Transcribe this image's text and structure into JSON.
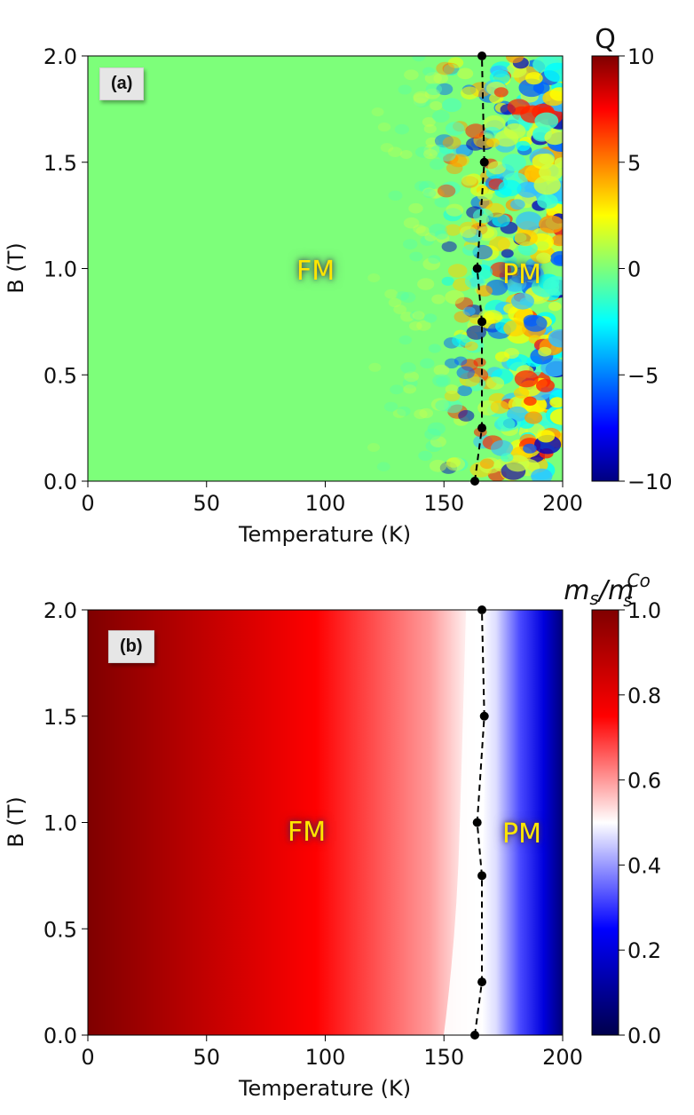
{
  "chart_data": [
    {
      "type": "heatmap",
      "panel_label": "(a)",
      "colorbar_label": "Q",
      "colormap": "jet",
      "xlabel": "Temperature (K)",
      "ylabel": "B (T)",
      "xlim": [
        0,
        200
      ],
      "ylim": [
        0.0,
        2.0
      ],
      "clim": [
        -10,
        10
      ],
      "xticks": [
        "0",
        "50",
        "100",
        "150",
        "200"
      ],
      "yticks": [
        "0.0",
        "0.5",
        "1.0",
        "1.5",
        "2.0"
      ],
      "cticks": [
        "−10",
        "−5",
        "0",
        "5",
        "10"
      ],
      "cticks_values": [
        -10,
        -5,
        0,
        5,
        10
      ],
      "regions": [
        "FM",
        "PM"
      ],
      "transition_line": {
        "T": [
          163,
          166,
          164,
          166,
          167,
          166
        ],
        "B": [
          0.0,
          0.25,
          1.0,
          0.75,
          1.5,
          2.0
        ]
      }
    },
    {
      "type": "heatmap",
      "panel_label": "(b)",
      "colorbar_label": "m_s/m_s^Co",
      "colorbar_label_parts": {
        "base": "m",
        "sub": "s",
        "sep": "/",
        "sub2": "s",
        "sup": "Co"
      },
      "colormap": "seismic",
      "xlabel": "Temperature (K)",
      "ylabel": "B (T)",
      "xlim": [
        0,
        200
      ],
      "ylim": [
        0.0,
        2.0
      ],
      "clim": [
        0.0,
        1.0
      ],
      "xticks": [
        "0",
        "50",
        "100",
        "150",
        "200"
      ],
      "yticks": [
        "0.0",
        "0.5",
        "1.0",
        "1.5",
        "2.0"
      ],
      "cticks": [
        "0.0",
        "0.2",
        "0.4",
        "0.6",
        "0.8",
        "1.0"
      ],
      "cticks_values": [
        0.0,
        0.2,
        0.4,
        0.6,
        0.8,
        1.0
      ],
      "regions": [
        "FM",
        "PM"
      ],
      "transition_line": {
        "T": [
          163,
          166,
          164,
          166,
          167,
          166
        ],
        "B": [
          0.0,
          0.25,
          1.0,
          0.75,
          1.5,
          2.0
        ]
      }
    }
  ]
}
